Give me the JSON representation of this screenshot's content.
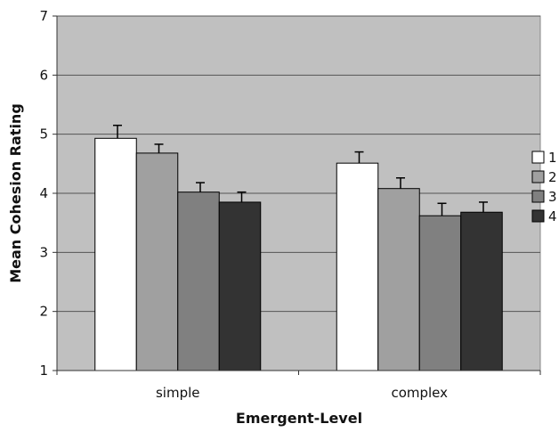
{
  "chart_data": {
    "type": "bar",
    "categories": [
      "simple",
      "complex"
    ],
    "series": [
      {
        "name": "1",
        "values": [
          4.93,
          4.51
        ],
        "errors": [
          0.22,
          0.19
        ],
        "color": "#ffffff"
      },
      {
        "name": "2",
        "values": [
          4.68,
          4.08
        ],
        "errors": [
          0.15,
          0.18
        ],
        "color": "#a0a0a0"
      },
      {
        "name": "3",
        "values": [
          4.02,
          3.62
        ],
        "errors": [
          0.16,
          0.21
        ],
        "color": "#808080"
      },
      {
        "name": "4",
        "values": [
          3.85,
          3.68
        ],
        "errors": [
          0.17,
          0.17
        ],
        "color": "#333333"
      }
    ],
    "xlabel": "Emergent-Level",
    "ylabel": "Mean Cohesion Rating",
    "ylim": [
      1,
      7
    ],
    "yticks": [
      1,
      2,
      3,
      4,
      5,
      6,
      7
    ],
    "grid": true,
    "plot_background": "#c0c0c0",
    "legend_position": "right"
  }
}
